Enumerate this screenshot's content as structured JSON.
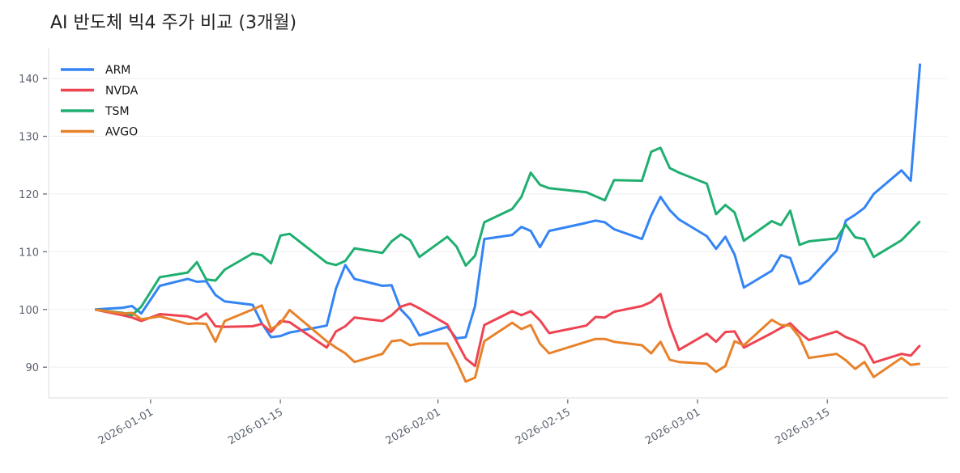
{
  "chart_data": {
    "type": "line",
    "title": "AI 반도체 빅4 주가 비교 (3개월)",
    "xlabel": "",
    "ylabel": "",
    "ylim": [
      84.7,
      145.2
    ],
    "xlim": [
      "2025-12-21",
      "2026-03-28"
    ],
    "yticks": [
      90,
      100,
      110,
      120,
      130,
      140
    ],
    "xticks": [
      "2026-01-01",
      "2026-01-15",
      "2026-02-01",
      "2026-02-15",
      "2026-03-01",
      "2026-03-15"
    ],
    "grid": "horizontal",
    "legend_position": "top-left",
    "x": [
      "2025-12-26",
      "2025-12-29",
      "2025-12-30",
      "2025-12-31",
      "2026-01-02",
      "2026-01-05",
      "2026-01-06",
      "2026-01-07",
      "2026-01-08",
      "2026-01-09",
      "2026-01-12",
      "2026-01-13",
      "2026-01-14",
      "2026-01-15",
      "2026-01-16",
      "2026-01-20",
      "2026-01-21",
      "2026-01-22",
      "2026-01-23",
      "2026-01-26",
      "2026-01-27",
      "2026-01-28",
      "2026-01-29",
      "2026-01-30",
      "2026-02-02",
      "2026-02-03",
      "2026-02-04",
      "2026-02-05",
      "2026-02-06",
      "2026-02-09",
      "2026-02-10",
      "2026-02-11",
      "2026-02-12",
      "2026-02-13",
      "2026-02-17",
      "2026-02-18",
      "2026-02-19",
      "2026-02-20",
      "2026-02-23",
      "2026-02-24",
      "2026-02-25",
      "2026-02-26",
      "2026-02-27",
      "2026-03-02",
      "2026-03-03",
      "2026-03-04",
      "2026-03-05",
      "2026-03-06",
      "2026-03-09",
      "2026-03-10",
      "2026-03-11",
      "2026-03-12",
      "2026-03-13",
      "2026-03-16",
      "2026-03-17",
      "2026-03-18",
      "2026-03-19",
      "2026-03-20",
      "2026-03-23",
      "2026-03-24",
      "2026-03-25"
    ],
    "series": [
      {
        "name": "ARM",
        "color": "#3384f4",
        "values": [
          100,
          100.3,
          100.6,
          99.3,
          104.1,
          105.3,
          104.8,
          104.9,
          102.5,
          101.4,
          100.8,
          97.6,
          95.2,
          95.4,
          96.0,
          97.2,
          103.6,
          107.7,
          105.3,
          104.1,
          104.2,
          100.0,
          98.3,
          95.5,
          97.0,
          95.0,
          95.2,
          100.6,
          112.2,
          112.9,
          114.3,
          113.6,
          110.8,
          113.6,
          115.0,
          115.4,
          115.1,
          113.9,
          112.2,
          116.3,
          119.5,
          117.2,
          115.6,
          112.7,
          110.5,
          112.6,
          109.5,
          103.8,
          106.7,
          109.4,
          108.9,
          104.4,
          105.0,
          110.2,
          115.4,
          116.4,
          117.6,
          120.0,
          124.1,
          122.3,
          142.6
        ]
      },
      {
        "name": "NVDA",
        "color": "#ee4452",
        "values": [
          100,
          99.0,
          98.6,
          98.0,
          99.2,
          98.8,
          98.3,
          99.3,
          97.1,
          97.0,
          97.1,
          97.5,
          96.1,
          98.0,
          97.8,
          93.4,
          96.2,
          97.1,
          98.6,
          98.0,
          99.0,
          100.5,
          101.0,
          100.2,
          97.4,
          94.5,
          91.5,
          90.2,
          97.3,
          99.7,
          99.0,
          99.7,
          98.1,
          95.9,
          97.2,
          98.7,
          98.6,
          99.6,
          100.6,
          101.3,
          102.7,
          97.2,
          93.0,
          95.8,
          94.4,
          96.1,
          96.2,
          93.4,
          95.9,
          96.8,
          97.6,
          96.0,
          94.7,
          96.2,
          95.2,
          94.6,
          93.7,
          90.8,
          92.3,
          92.0,
          93.8
        ]
      },
      {
        "name": "TSM",
        "color": "#1faf70",
        "values": [
          100,
          99.4,
          99.0,
          100.5,
          105.6,
          106.4,
          108.2,
          105.2,
          105.0,
          106.9,
          109.7,
          109.4,
          108.0,
          112.8,
          113.1,
          108.1,
          107.7,
          108.4,
          110.6,
          109.8,
          111.8,
          113.0,
          112.0,
          109.1,
          112.6,
          110.9,
          107.6,
          109.3,
          115.1,
          117.4,
          119.5,
          123.7,
          121.6,
          121.0,
          120.3,
          119.6,
          118.9,
          122.4,
          122.3,
          127.3,
          128.0,
          124.5,
          123.7,
          121.8,
          116.5,
          118.1,
          116.8,
          111.9,
          115.3,
          114.6,
          117.1,
          111.2,
          111.8,
          112.3,
          114.7,
          112.5,
          112.2,
          109.1,
          112.0,
          113.6,
          115.3
        ]
      },
      {
        "name": "AVGO",
        "color": "#e8822a",
        "values": [
          100,
          99.3,
          99.4,
          98.3,
          98.8,
          97.5,
          97.6,
          97.5,
          94.4,
          98.0,
          100.0,
          100.7,
          96.6,
          97.6,
          99.9,
          94.5,
          93.4,
          92.4,
          90.9,
          92.3,
          94.5,
          94.7,
          93.8,
          94.1,
          94.1,
          91.0,
          87.5,
          88.2,
          94.5,
          97.7,
          96.6,
          97.3,
          94.1,
          92.4,
          94.4,
          94.9,
          94.9,
          94.4,
          93.8,
          92.4,
          94.4,
          91.3,
          90.9,
          90.6,
          89.2,
          90.2,
          94.5,
          93.8,
          98.2,
          97.3,
          97.2,
          95.2,
          91.6,
          92.3,
          91.2,
          89.7,
          90.9,
          88.3,
          91.6,
          90.4,
          90.6
        ]
      }
    ]
  }
}
